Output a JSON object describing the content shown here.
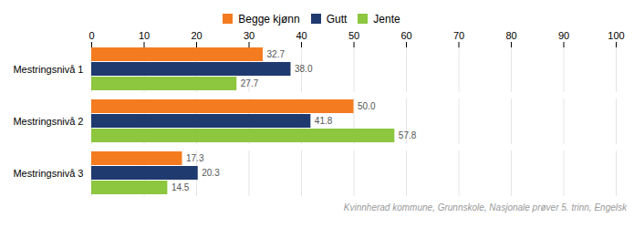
{
  "chart_data": {
    "type": "bar",
    "orientation": "horizontal",
    "categories": [
      "Mestringsnivå 1",
      "Mestringsnivå 2",
      "Mestringsnivå 3"
    ],
    "series": [
      {
        "name": "Begge kjønn",
        "color": "#F47B20",
        "values": [
          32.7,
          50.0,
          17.3
        ],
        "value_labels": [
          "32.7",
          "50.0",
          "17.3"
        ]
      },
      {
        "name": "Gutt",
        "color": "#1F3A6E",
        "values": [
          38.0,
          41.8,
          20.3
        ],
        "value_labels": [
          "38.0",
          "41.8",
          "20.3"
        ]
      },
      {
        "name": "Jente",
        "color": "#8DC63F",
        "values": [
          27.7,
          57.8,
          14.5
        ],
        "value_labels": [
          "27.7",
          "57.8",
          "14.5"
        ]
      }
    ],
    "xlim": [
      0,
      100
    ],
    "xticks": [
      0,
      10,
      20,
      30,
      40,
      50,
      60,
      70,
      80,
      90,
      100
    ],
    "grid": true,
    "data_labels": true,
    "legend": "top",
    "annotations": [
      "Kvinnherad kommune, Grunnskole, Nasjonale prøver 5. trinn, Engelsk"
    ]
  }
}
